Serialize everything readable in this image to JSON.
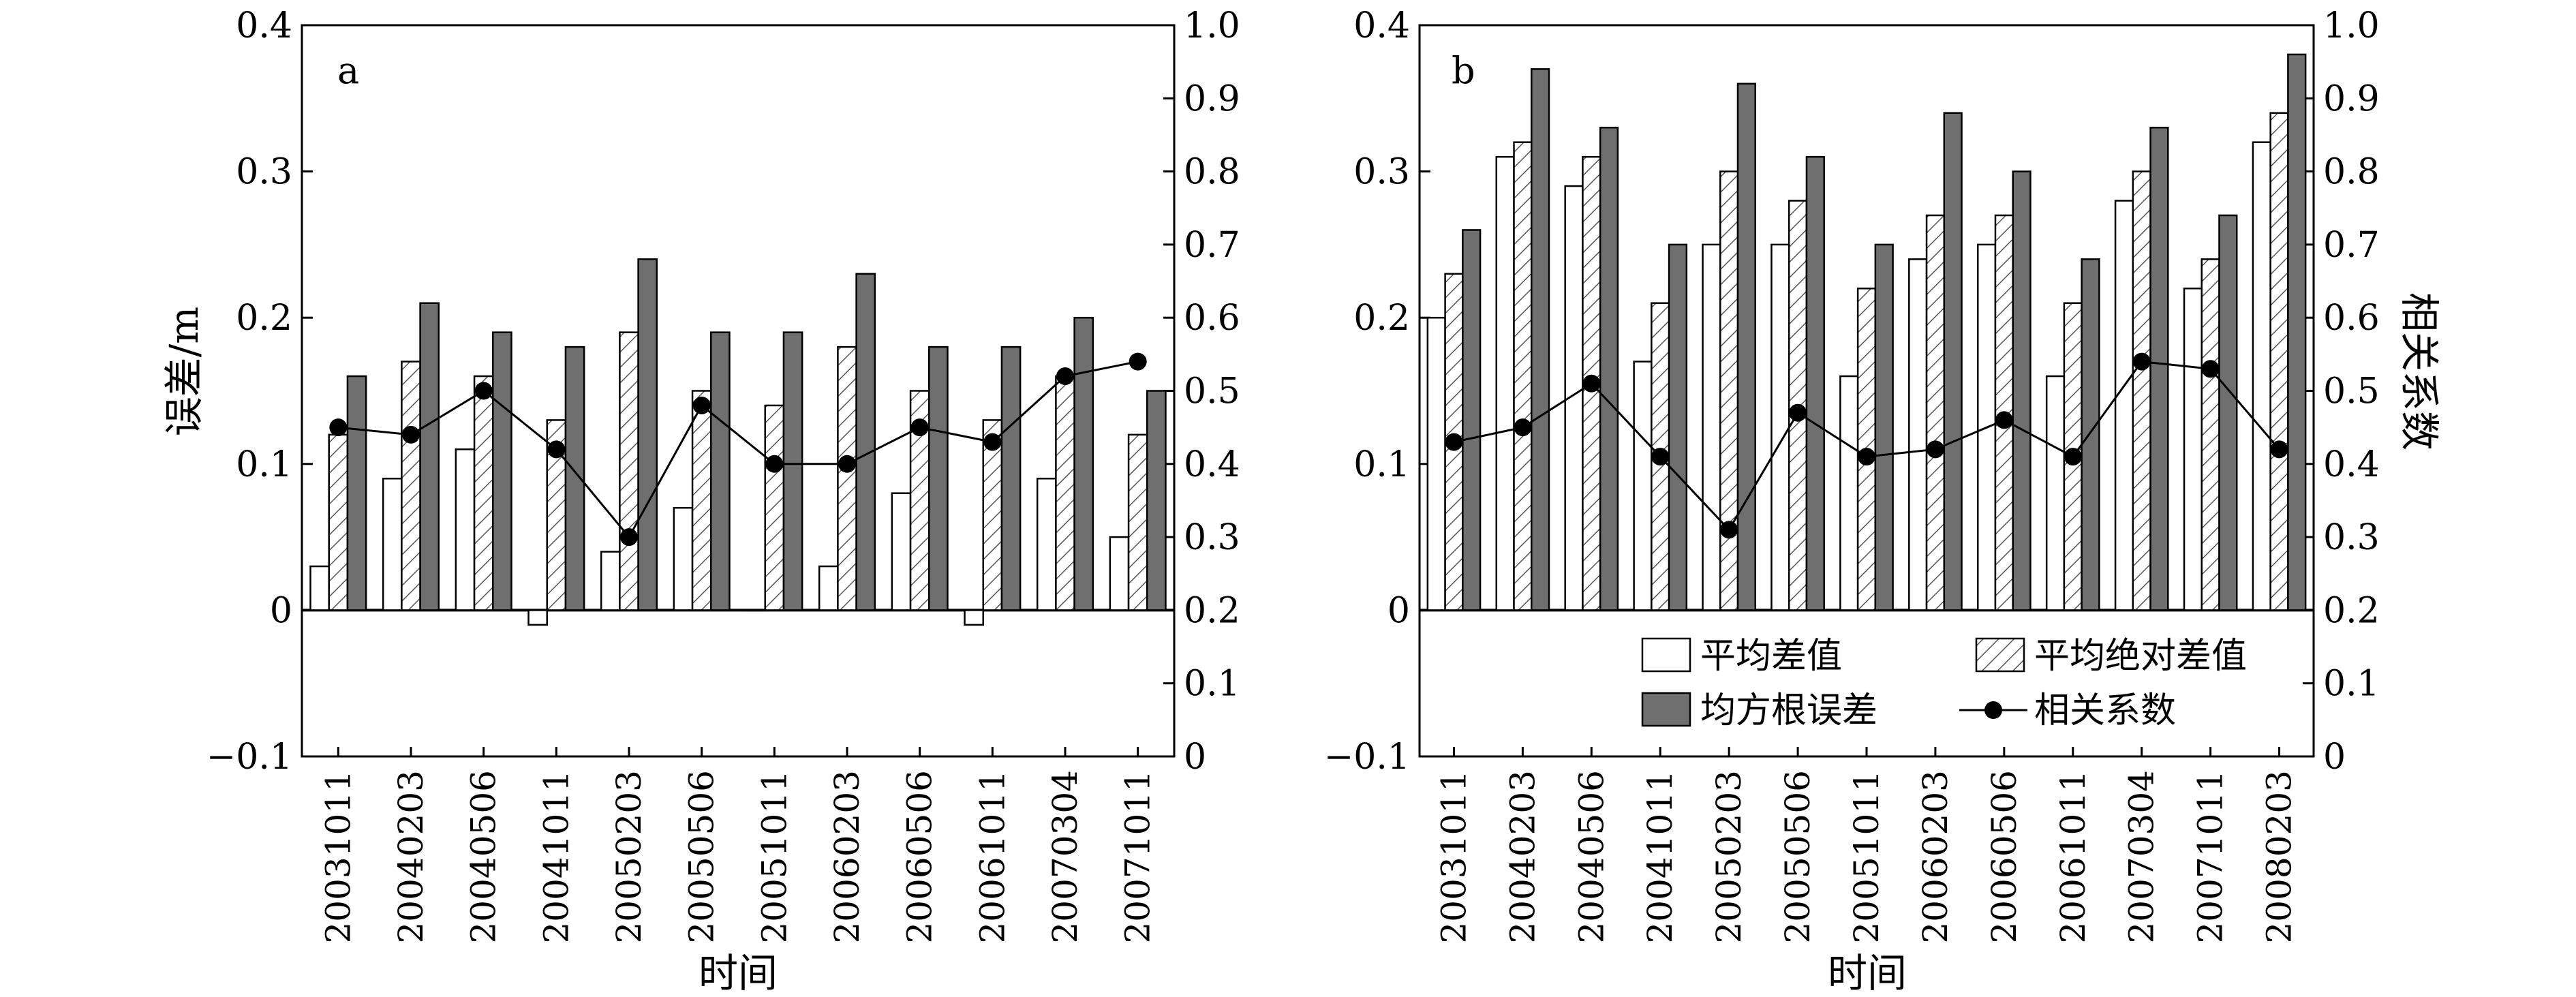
{
  "legend": {
    "mean_diff": "平均差值",
    "mean_abs_diff": "平均绝对差值",
    "rmse": "均方根误差",
    "corr": "相关系数"
  },
  "colors": {
    "mean_diff_fill": "#ffffff",
    "rmse_fill": "#6f6f6f",
    "hatch": "#555555",
    "line": "#000000",
    "marker": "#000000"
  },
  "chart_data": [
    {
      "type": "bar",
      "panel_label": "a",
      "xlabel": "时间",
      "ylabel": "误差/m",
      "y2label": "",
      "ylim": [
        -0.1,
        0.4
      ],
      "y2lim": [
        0,
        1.0
      ],
      "yticks": [
        -0.1,
        0,
        0.1,
        0.2,
        0.3,
        0.4
      ],
      "y2ticks": [
        0,
        0.1,
        0.2,
        0.3,
        0.4,
        0.5,
        0.6,
        0.7,
        0.8,
        0.9,
        1.0
      ],
      "ytick_labels": [
        "−0.1",
        "0",
        "0.1",
        "0.2",
        "0.3",
        "0.4"
      ],
      "y2tick_labels": [
        "0",
        "0.1",
        "0.2",
        "0.3",
        "0.4",
        "0.5",
        "0.6",
        "0.7",
        "0.8",
        "0.9",
        "1.0"
      ],
      "categories": [
        "20031011",
        "20040203",
        "20040506",
        "20041011",
        "20050203",
        "20050506",
        "20051011",
        "20060203",
        "20060506",
        "20061011",
        "20070304",
        "20071011"
      ],
      "series": [
        {
          "name": "平均差值",
          "axis": "left",
          "values": [
            0.03,
            0.09,
            0.11,
            -0.01,
            0.04,
            0.07,
            0.0,
            0.03,
            0.08,
            -0.01,
            0.09,
            0.05
          ]
        },
        {
          "name": "平均绝对差值",
          "axis": "left",
          "values": [
            0.12,
            0.17,
            0.16,
            0.13,
            0.19,
            0.15,
            0.14,
            0.18,
            0.15,
            0.13,
            0.16,
            0.12
          ]
        },
        {
          "name": "均方根误差",
          "axis": "left",
          "values": [
            0.16,
            0.21,
            0.19,
            0.18,
            0.24,
            0.19,
            0.19,
            0.23,
            0.18,
            0.18,
            0.2,
            0.15
          ]
        },
        {
          "name": "相关系数",
          "axis": "right",
          "type": "line",
          "values": [
            0.45,
            0.44,
            0.5,
            0.42,
            0.3,
            0.48,
            0.4,
            0.4,
            0.45,
            0.43,
            0.52,
            0.54
          ]
        }
      ],
      "legend": "none"
    },
    {
      "type": "bar",
      "panel_label": "b",
      "xlabel": "时间",
      "ylabel": "",
      "y2label": "相关系数",
      "ylim": [
        -0.1,
        0.4
      ],
      "y2lim": [
        0,
        1.0
      ],
      "yticks": [
        -0.1,
        0,
        0.1,
        0.2,
        0.3,
        0.4
      ],
      "y2ticks": [
        0,
        0.1,
        0.2,
        0.3,
        0.4,
        0.5,
        0.6,
        0.7,
        0.8,
        0.9,
        1.0
      ],
      "ytick_labels": [
        "−0.1",
        "0",
        "0.1",
        "0.2",
        "0.3",
        "0.4"
      ],
      "y2tick_labels": [
        "0",
        "0.1",
        "0.2",
        "0.3",
        "0.4",
        "0.5",
        "0.6",
        "0.7",
        "0.8",
        "0.9",
        "1.0"
      ],
      "categories": [
        "20031011",
        "20040203",
        "20040506",
        "20041011",
        "20050203",
        "20050506",
        "20051011",
        "20060203",
        "20060506",
        "20061011",
        "20070304",
        "20071011",
        "20080203"
      ],
      "series": [
        {
          "name": "平均差值",
          "axis": "left",
          "values": [
            0.2,
            0.31,
            0.29,
            0.17,
            0.25,
            0.25,
            0.16,
            0.24,
            0.25,
            0.16,
            0.28,
            0.22,
            0.32
          ]
        },
        {
          "name": "平均绝对差值",
          "axis": "left",
          "values": [
            0.23,
            0.32,
            0.31,
            0.21,
            0.3,
            0.28,
            0.22,
            0.27,
            0.27,
            0.21,
            0.3,
            0.24,
            0.34
          ]
        },
        {
          "name": "均方根误差",
          "axis": "left",
          "values": [
            0.26,
            0.37,
            0.33,
            0.25,
            0.36,
            0.31,
            0.25,
            0.34,
            0.3,
            0.24,
            0.33,
            0.27,
            0.38
          ]
        },
        {
          "name": "相关系数",
          "axis": "right",
          "type": "line",
          "values": [
            0.43,
            0.45,
            0.51,
            0.41,
            0.31,
            0.47,
            0.41,
            0.42,
            0.46,
            0.41,
            0.54,
            0.53,
            0.42
          ]
        }
      ],
      "legend": "bottom-right"
    }
  ]
}
